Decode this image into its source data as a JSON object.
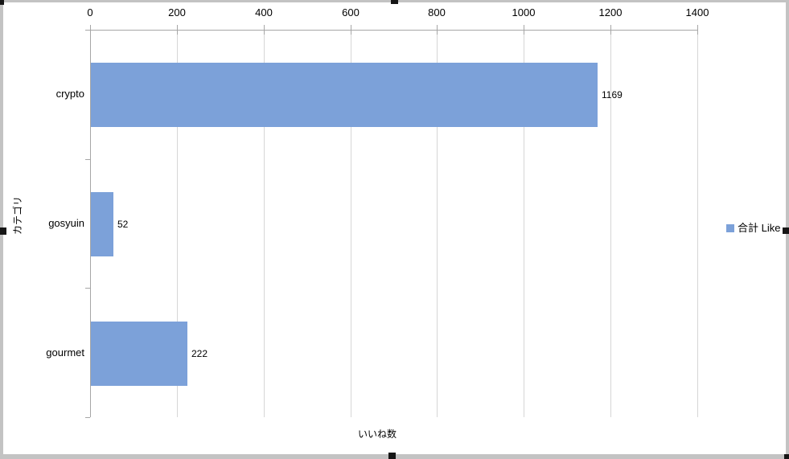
{
  "chart_data": {
    "type": "bar",
    "orientation": "horizontal",
    "title": "",
    "categories": [
      "crypto",
      "gosyuin",
      "gourmet"
    ],
    "series": [
      {
        "name": "合計 Like",
        "values": [
          1169,
          52,
          222
        ]
      }
    ],
    "data_labels": [
      "1169",
      "52",
      "222"
    ],
    "xlabel": "いいね数",
    "ylabel": "カテゴリ",
    "xlim": [
      0,
      1400
    ],
    "x_ticks": [
      0,
      200,
      400,
      600,
      800,
      1000,
      1200,
      1400
    ],
    "grid": true,
    "legend_position": "right-middle",
    "bar_color": "#7ca1d9",
    "gridline_color": "#d6d6d6",
    "axis_color": "#a6a6a6",
    "frame_color": "#c3c3c3"
  }
}
